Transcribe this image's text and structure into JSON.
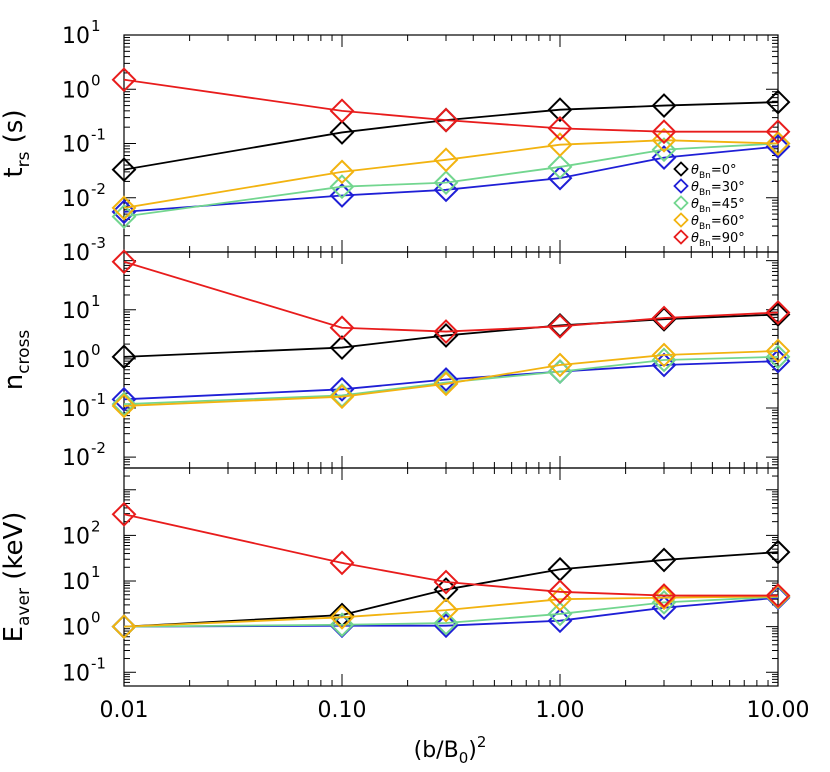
{
  "chart_data": [
    {
      "type": "line",
      "ylabel_main": "t",
      "ylabel_sub": "rs",
      "ylabel_unit": "(s)",
      "y_log": true,
      "ylim": [
        0.001,
        10
      ],
      "yticks": [
        {
          "value": 0.001,
          "exp": "-3"
        },
        {
          "value": 0.01,
          "exp": "-2"
        },
        {
          "value": 0.1,
          "exp": "-1"
        },
        {
          "value": 1,
          "exp": "0"
        },
        {
          "value": 10,
          "exp": "1"
        }
      ],
      "x": [
        0.01,
        0.1,
        0.3,
        1,
        3,
        10
      ],
      "series": [
        {
          "name_sub": "Bn",
          "name_val": "=0°",
          "color": "#000000",
          "values": [
            0.033,
            0.16,
            0.27,
            0.42,
            0.5,
            0.58
          ]
        },
        {
          "name_sub": "Bn",
          "name_val": "=30°",
          "color": "#1f1fd6",
          "values": [
            0.0055,
            0.011,
            0.014,
            0.023,
            0.055,
            0.088
          ]
        },
        {
          "name_sub": "Bn",
          "name_val": "=45°",
          "color": "#72d68f",
          "values": [
            0.0045,
            0.016,
            0.019,
            0.037,
            0.077,
            0.1
          ]
        },
        {
          "name_sub": "Bn",
          "name_val": "=60°",
          "color": "#f2b310",
          "values": [
            0.0065,
            0.03,
            0.05,
            0.095,
            0.115,
            0.1
          ]
        },
        {
          "name_sub": "Bn",
          "name_val": "=90°",
          "color": "#e81c1c",
          "values": [
            1.5,
            0.4,
            0.27,
            0.19,
            0.165,
            0.165
          ]
        }
      ],
      "legend_symbol": "θ",
      "legend_position": "bottom-right"
    },
    {
      "type": "line",
      "ylabel_main": "n",
      "ylabel_sub": "cross",
      "ylabel_unit": "",
      "y_log": true,
      "ylim": [
        0.006,
        150
      ],
      "yticks": [
        {
          "value": 0.01,
          "exp": "-2"
        },
        {
          "value": 0.1,
          "exp": "-1"
        },
        {
          "value": 1,
          "exp": "0"
        },
        {
          "value": 10,
          "exp": "1"
        }
      ],
      "x": [
        0.01,
        0.1,
        0.3,
        1,
        3,
        10
      ],
      "series": [
        {
          "color": "#000000",
          "values": [
            1.1,
            1.7,
            3.0,
            4.8,
            6.4,
            8.0
          ]
        },
        {
          "color": "#1f1fd6",
          "values": [
            0.15,
            0.24,
            0.38,
            0.55,
            0.75,
            0.9
          ]
        },
        {
          "color": "#72d68f",
          "values": [
            0.12,
            0.18,
            0.33,
            0.55,
            0.95,
            1.1
          ]
        },
        {
          "color": "#f2b310",
          "values": [
            0.11,
            0.17,
            0.31,
            0.75,
            1.2,
            1.45
          ]
        },
        {
          "color": "#e81c1c",
          "values": [
            95,
            4.3,
            3.6,
            4.6,
            6.8,
            8.8
          ]
        }
      ]
    },
    {
      "type": "line",
      "ylabel_main": "E",
      "ylabel_sub": "aver",
      "ylabel_unit": "(keV)",
      "y_log": true,
      "ylim": [
        0.05,
        3000
      ],
      "yticks": [
        {
          "value": 0.1,
          "exp": "-1"
        },
        {
          "value": 1,
          "exp": "0"
        },
        {
          "value": 10,
          "exp": "1"
        },
        {
          "value": 100,
          "exp": "2"
        }
      ],
      "x": [
        0.01,
        0.1,
        0.3,
        1,
        3,
        10
      ],
      "series": [
        {
          "color": "#000000",
          "values": [
            1.0,
            1.8,
            6.5,
            18,
            29,
            43
          ]
        },
        {
          "color": "#1f1fd6",
          "values": [
            1.0,
            1.05,
            1.05,
            1.35,
            2.6,
            4.3
          ]
        },
        {
          "color": "#72d68f",
          "values": [
            1.0,
            1.1,
            1.2,
            1.9,
            3.4,
            4.5
          ]
        },
        {
          "color": "#f2b310",
          "values": [
            1.0,
            1.6,
            2.3,
            4.0,
            4.3,
            4.6
          ]
        },
        {
          "color": "#e81c1c",
          "values": [
            290,
            25,
            9.5,
            5.8,
            4.8,
            4.8
          ]
        }
      ]
    }
  ],
  "xaxis": {
    "tick_labels": [
      "0.01",
      "0.10",
      "1.00",
      "10.00"
    ],
    "tick_values": [
      0.01,
      0.1,
      1,
      10
    ],
    "xlim": [
      0.01,
      10
    ],
    "label_main": "(b/B",
    "label_sub": "0",
    "label_close": ")",
    "label_sup": "2"
  }
}
